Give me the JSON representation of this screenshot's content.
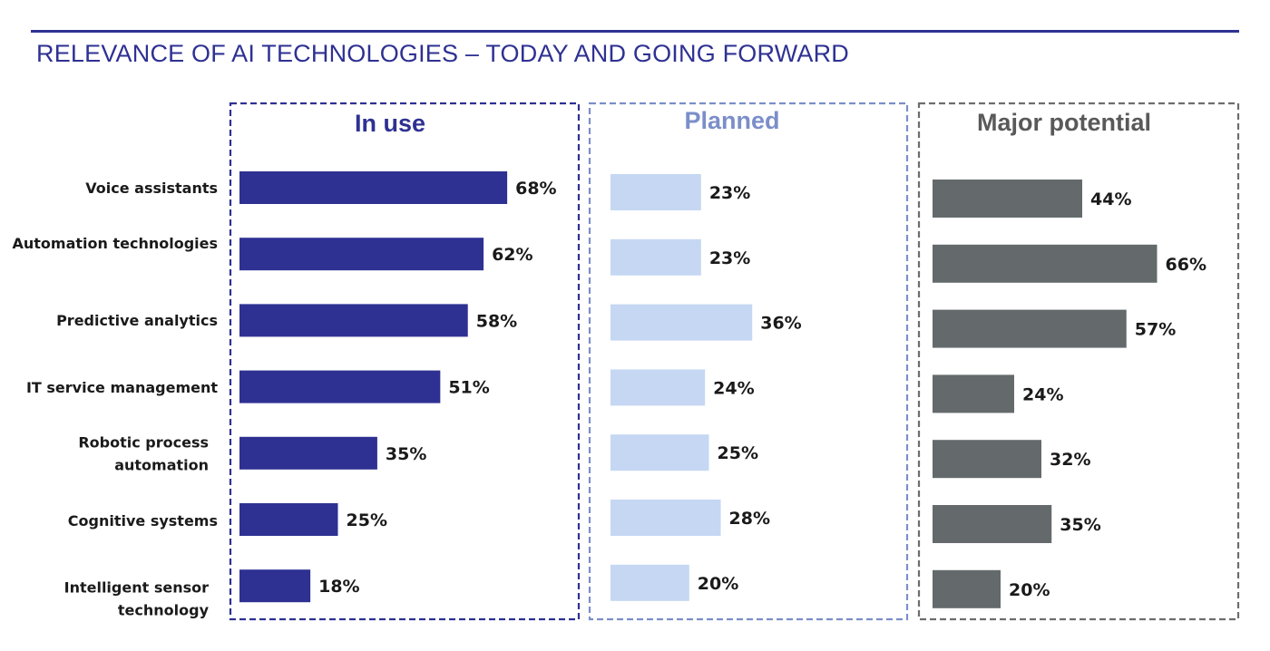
{
  "header": {
    "title": "RELEVANCE OF AI TECHNOLOGIES – TODAY AND GOING FORWARD"
  },
  "chart_data": {
    "type": "bar",
    "orientation": "horizontal",
    "title": "RELEVANCE OF AI TECHNOLOGIES – TODAY AND GOING FORWARD",
    "categories": [
      "Voice assistants",
      "Automation technologies",
      "Predictive analytics",
      "IT service management",
      "Robotic process automation",
      "Cognitive systems",
      "Intelligent sensor technology"
    ],
    "category_lines": [
      [
        "Voice assistants"
      ],
      [
        "Automation technologies"
      ],
      [
        "Predictive analytics"
      ],
      [
        "IT service management"
      ],
      [
        "Robotic process",
        "automation"
      ],
      [
        "Cognitive systems"
      ],
      [
        "Intelligent sensor",
        "technology"
      ]
    ],
    "unit": "%",
    "series": [
      {
        "name": "In use",
        "color": "#2e3192",
        "border": "#2e3192",
        "values": [
          68,
          62,
          58,
          51,
          35,
          25,
          18
        ]
      },
      {
        "name": "Planned",
        "color": "#c5d7f3",
        "border": "#7b8ec9",
        "values": [
          23,
          23,
          36,
          24,
          25,
          28,
          20
        ]
      },
      {
        "name": "Major potential",
        "color": "#646a6c",
        "border": "#6d6d6d",
        "values": [
          44,
          66,
          57,
          24,
          32,
          35,
          20
        ]
      }
    ],
    "xlim": [
      0,
      100
    ],
    "grid": false,
    "legend": "panel titles above each column"
  }
}
